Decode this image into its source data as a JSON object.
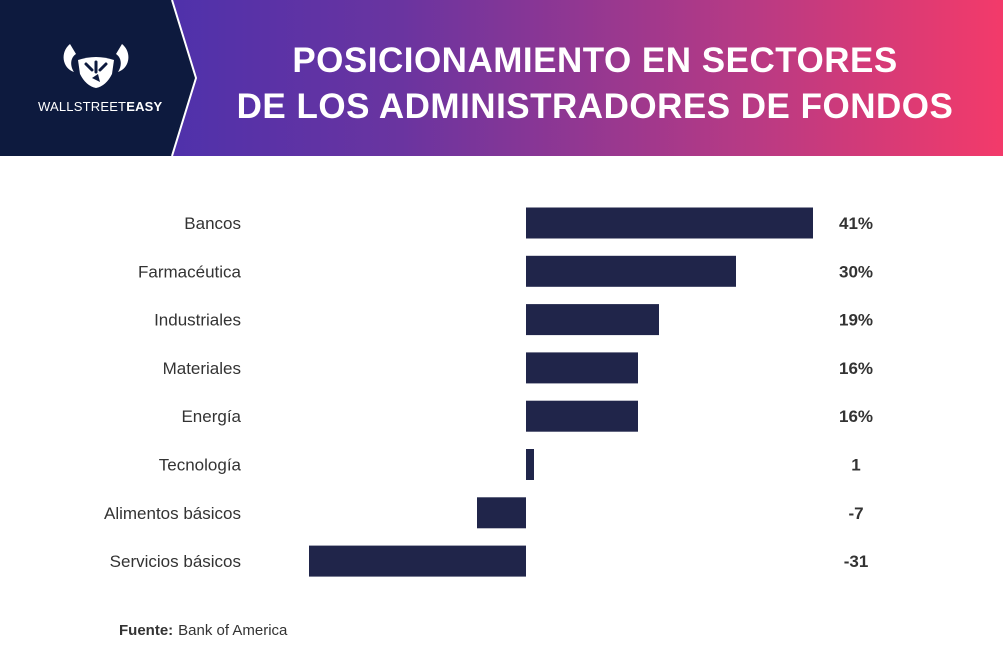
{
  "header": {
    "brand_prefix": "WALLSTREET",
    "brand_suffix": "EASY",
    "title_line1": "POSICIONAMIENTO EN SECTORES",
    "title_line2": "DE LOS ADMINISTRADORES DE FONDOS"
  },
  "colors": {
    "bar": "#20254a",
    "header_dark": "#0d1a3e",
    "gradient_start": "#3b2fb3",
    "gradient_end": "#f33a6a"
  },
  "icons": [
    "bull-logo-icon"
  ],
  "chart_data": {
    "type": "bar",
    "orientation": "horizontal",
    "categories": [
      "Bancos",
      "Farmacéutica",
      "Industriales",
      "Materiales",
      "Energía",
      "Tecnología",
      "Alimentos básicos",
      "Servicios básicos"
    ],
    "values": [
      41,
      30,
      19,
      16,
      16,
      1,
      -7,
      -31
    ],
    "value_labels": [
      "41%",
      "30%",
      "19%",
      "16%",
      "16%",
      "1",
      "-7",
      "-31"
    ],
    "grid": false,
    "legend": "none"
  },
  "source": {
    "label": "Fuente:",
    "text": "Bank of America"
  }
}
